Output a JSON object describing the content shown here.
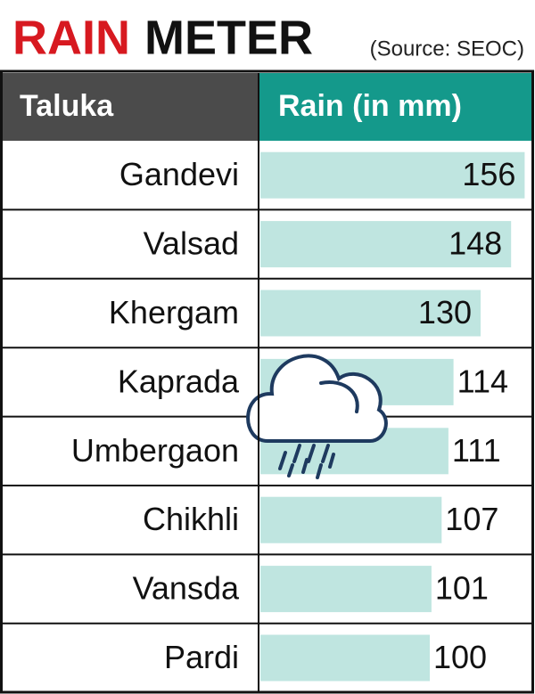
{
  "chart_data": {
    "type": "bar",
    "title": [
      "RAIN",
      "METER"
    ],
    "source": "(Source: SEOC)",
    "columns": [
      "Taluka",
      "Rain (in mm)"
    ],
    "categories": [
      "Gandevi",
      "Valsad",
      "Khergam",
      "Kaprada",
      "Umbergaon",
      "Chikhli",
      "Vansda",
      "Pardi"
    ],
    "values": [
      156,
      148,
      130,
      114,
      111,
      107,
      101,
      100
    ],
    "color": "#bfe5e0",
    "title_colors": [
      "#d71920",
      "#111111"
    ],
    "header_colors": [
      "#4b4b4b",
      "#14998b"
    ]
  }
}
